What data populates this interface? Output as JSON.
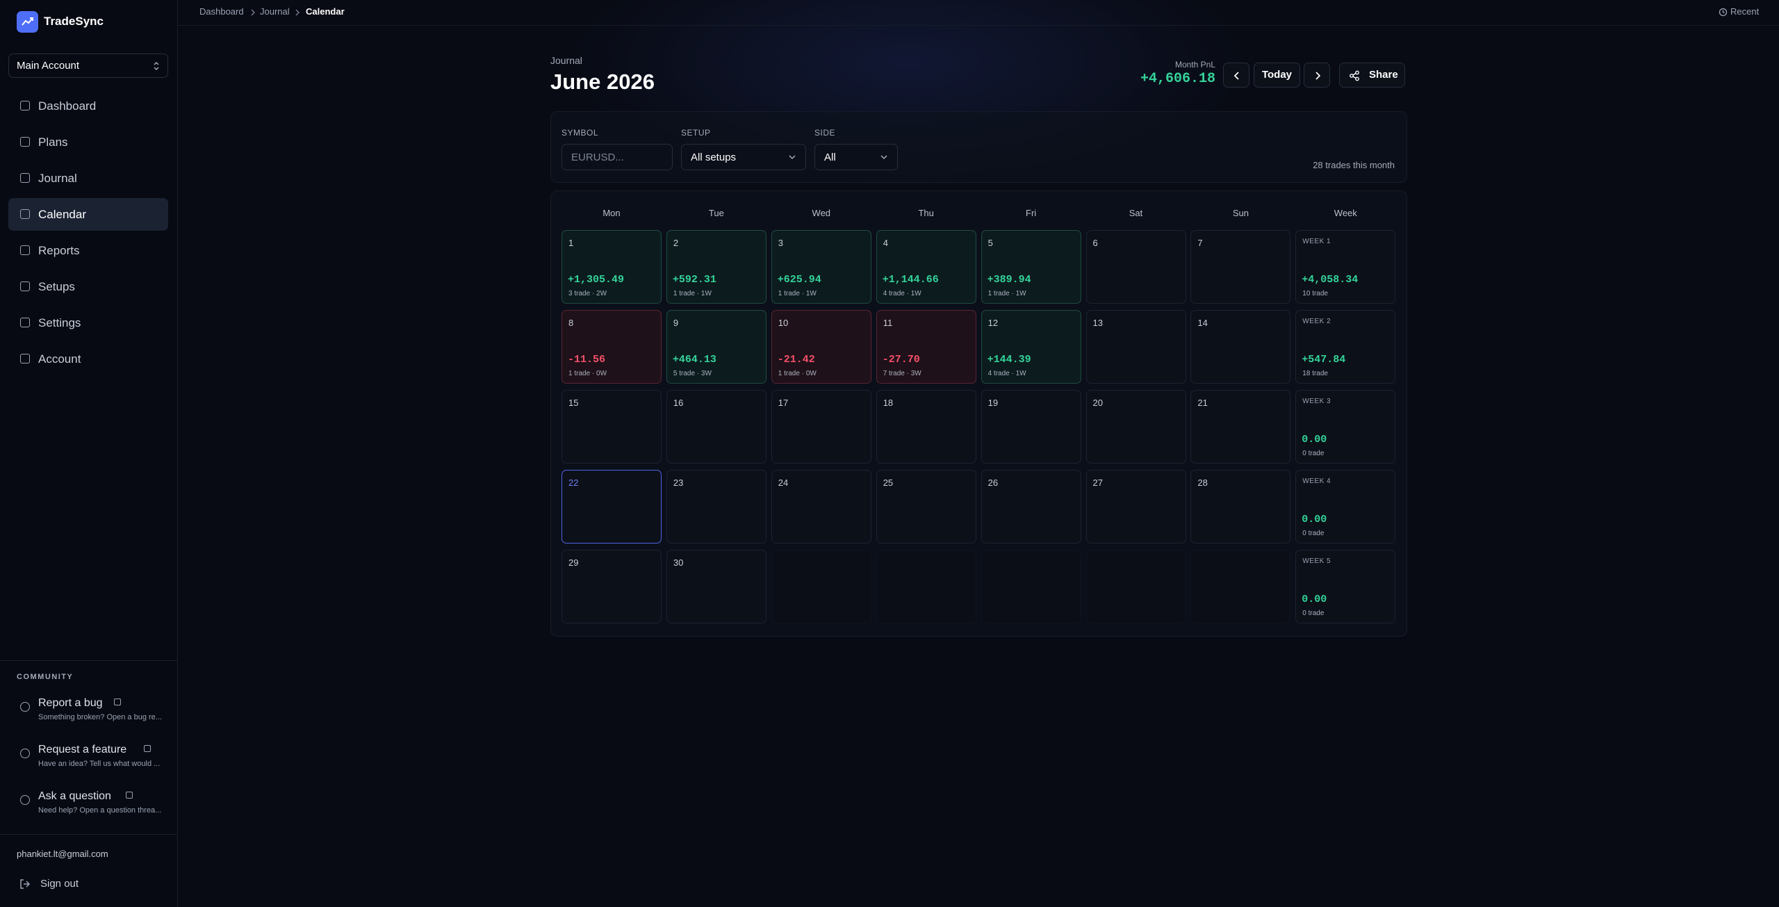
{
  "sidebar": {
    "brand": "TradeSync",
    "account": "Main Account",
    "nav": [
      {
        "label": "Dashboard"
      },
      {
        "label": "Plans"
      },
      {
        "label": "Journal"
      },
      {
        "label": "Calendar",
        "active": true
      },
      {
        "label": "Reports"
      },
      {
        "label": "Setups"
      },
      {
        "label": "Settings"
      },
      {
        "label": "Account"
      }
    ],
    "community": {
      "heading": "COMMUNITY",
      "items": [
        {
          "title": "Report a bug",
          "subtitle": "Something broken? Open a bug re..."
        },
        {
          "title": "Request a feature",
          "subtitle": "Have an idea? Tell us what would ..."
        },
        {
          "title": "Ask a question",
          "subtitle": "Need help? Open a question threa..."
        }
      ]
    },
    "email": "phankiet.lt@gmail.com",
    "sign_out": "Sign out"
  },
  "topbar": {
    "breadcrumbs": [
      "Dashboard",
      "Journal",
      "Calendar"
    ],
    "recent": "Recent"
  },
  "header": {
    "section": "Journal",
    "title": "June 2026",
    "pnl_label": "Month PnL",
    "pnl_value": "+4,606.18",
    "today_button": "Today",
    "share_button": "Share"
  },
  "filters": {
    "symbol_label": "SYMBOL",
    "symbol_placeholder": "EURUSD...",
    "setup_label": "SETUP",
    "setup_value": "All setups",
    "side_label": "SIDE",
    "side_value": "All",
    "trade_count": "28 trades this month"
  },
  "calendar": {
    "weekdays": [
      "Mon",
      "Tue",
      "Wed",
      "Thu",
      "Fri",
      "Sat",
      "Sun",
      "Week"
    ],
    "weeks": [
      {
        "days": [
          {
            "day": "1",
            "pnl": "+1,305.49",
            "info": "3 trade · 2W",
            "tone": "win"
          },
          {
            "day": "2",
            "pnl": "+592.31",
            "info": "1 trade · 1W",
            "tone": "win"
          },
          {
            "day": "3",
            "pnl": "+625.94",
            "info": "1 trade · 1W",
            "tone": "win"
          },
          {
            "day": "4",
            "pnl": "+1,144.66",
            "info": "4 trade · 1W",
            "tone": "win"
          },
          {
            "day": "5",
            "pnl": "+389.94",
            "info": "1 trade · 1W",
            "tone": "win"
          },
          {
            "day": "6"
          },
          {
            "day": "7"
          }
        ],
        "week": {
          "label": "WEEK 1",
          "pnl": "+4,058.34",
          "info": "10 trade"
        }
      },
      {
        "days": [
          {
            "day": "8",
            "pnl": "-11.56",
            "info": "1 trade · 0W",
            "tone": "loss"
          },
          {
            "day": "9",
            "pnl": "+464.13",
            "info": "5 trade · 3W",
            "tone": "win"
          },
          {
            "day": "10",
            "pnl": "-21.42",
            "info": "1 trade · 0W",
            "tone": "loss"
          },
          {
            "day": "11",
            "pnl": "-27.70",
            "info": "7 trade · 3W",
            "tone": "loss"
          },
          {
            "day": "12",
            "pnl": "+144.39",
            "info": "4 trade · 1W",
            "tone": "win"
          },
          {
            "day": "13"
          },
          {
            "day": "14"
          }
        ],
        "week": {
          "label": "WEEK 2",
          "pnl": "+547.84",
          "info": "18 trade"
        }
      },
      {
        "days": [
          {
            "day": "15"
          },
          {
            "day": "16"
          },
          {
            "day": "17"
          },
          {
            "day": "18"
          },
          {
            "day": "19"
          },
          {
            "day": "20"
          },
          {
            "day": "21"
          }
        ],
        "week": {
          "label": "WEEK 3",
          "pnl": "0.00",
          "info": "0 trade"
        }
      },
      {
        "days": [
          {
            "day": "22",
            "today": true
          },
          {
            "day": "23"
          },
          {
            "day": "24"
          },
          {
            "day": "25"
          },
          {
            "day": "26"
          },
          {
            "day": "27"
          },
          {
            "day": "28"
          }
        ],
        "week": {
          "label": "WEEK 4",
          "pnl": "0.00",
          "info": "0 trade"
        }
      },
      {
        "days": [
          {
            "day": "29"
          },
          {
            "day": "30"
          },
          null,
          null,
          null,
          null,
          null
        ],
        "week": {
          "label": "WEEK 5",
          "pnl": "0.00",
          "info": "0 trade"
        }
      }
    ]
  }
}
